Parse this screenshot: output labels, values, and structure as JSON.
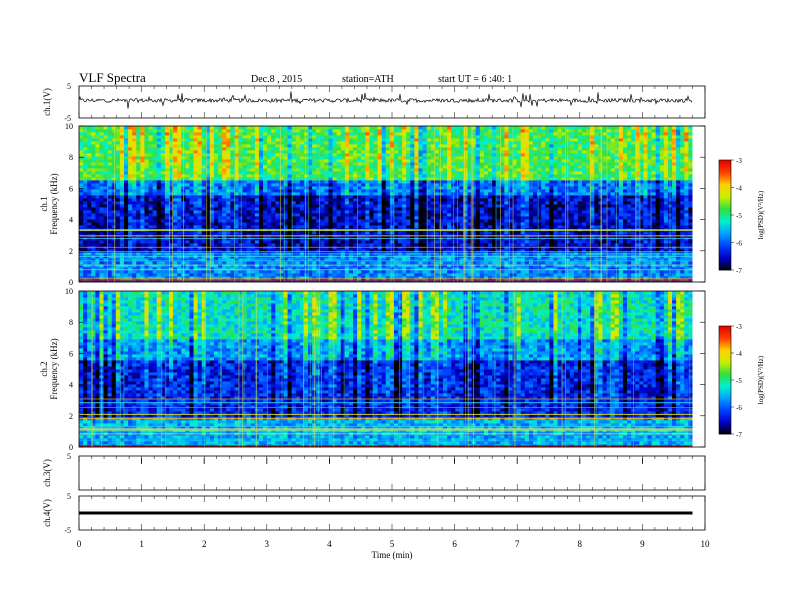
{
  "header": {
    "title": "VLF  Spectra",
    "date": "Dec.8  , 2015",
    "station": "station=ATH",
    "start": "start  UT =   6  :40: 1"
  },
  "colorbar": {
    "label": "log(PSD)(V²/Hz)",
    "ticks": [
      "-3",
      "-4",
      "-5",
      "-6",
      "-7"
    ],
    "colors": [
      "#000000",
      "#0000c8",
      "#0040ff",
      "#00a0ff",
      "#00f0d0",
      "#30e040",
      "#c8f000",
      "#ffd000",
      "#ff4000",
      "#e00000",
      "#ffffff"
    ]
  },
  "chart_data": [
    {
      "type": "line",
      "name": "ch1-waveform",
      "ylabel": "ch.1(V)",
      "ylim": [
        -5,
        5
      ],
      "y_ticks": [
        "5",
        "-5"
      ],
      "x_range_min": [
        0,
        9.8
      ],
      "baseline_v": 0.5,
      "noise_v": 0.6
    },
    {
      "type": "heatmap",
      "name": "ch1-spectrogram",
      "ylabel_top": "ch.1",
      "ylabel": "Frequency  (kHz)",
      "ylim_khz": [
        0,
        10
      ],
      "y_ticks": [
        "0",
        "2",
        "4",
        "6",
        "8",
        "10"
      ],
      "x_range_min": [
        0,
        9.8
      ],
      "bands": [
        {
          "from_khz": 0,
          "to_khz": 2,
          "level": -5.8
        },
        {
          "from_khz": 2,
          "to_khz": 5.5,
          "level": -6.5
        },
        {
          "from_khz": 5.5,
          "to_khz": 6.5,
          "level": -5.9
        },
        {
          "from_khz": 6.5,
          "to_khz": 10,
          "level": -4.8
        }
      ]
    },
    {
      "type": "heatmap",
      "name": "ch2-spectrogram",
      "ylabel_top": "ch.2",
      "ylabel": "Frequency  (kHz)",
      "ylim_khz": [
        0,
        10
      ],
      "y_ticks": [
        "0",
        "2",
        "4",
        "6",
        "8",
        "10"
      ],
      "x_range_min": [
        0,
        9.8
      ],
      "bands": [
        {
          "from_khz": 0,
          "to_khz": 2,
          "level": -5.6
        },
        {
          "from_khz": 2,
          "to_khz": 5.5,
          "level": -6.3
        },
        {
          "from_khz": 5.5,
          "to_khz": 7,
          "level": -5.7
        },
        {
          "from_khz": 7,
          "to_khz": 10,
          "level": -5.2
        }
      ]
    },
    {
      "type": "line",
      "name": "ch3-waveform",
      "ylabel": "ch.3(V)",
      "ylim": [
        -5,
        5
      ],
      "y_ticks": [
        "5"
      ],
      "values": []
    },
    {
      "type": "line",
      "name": "ch4-waveform",
      "ylabel": "ch.4(V)",
      "ylim": [
        -5,
        5
      ],
      "y_ticks": [
        "5",
        "-5"
      ],
      "x_range_min": [
        0,
        9.8
      ],
      "baseline_v": 0
    }
  ],
  "xaxis": {
    "label": "Time  (min)",
    "ticks": [
      "0",
      "1",
      "2",
      "3",
      "4",
      "5",
      "6",
      "7",
      "8",
      "9",
      "10"
    ],
    "xlim": [
      0,
      10
    ]
  }
}
